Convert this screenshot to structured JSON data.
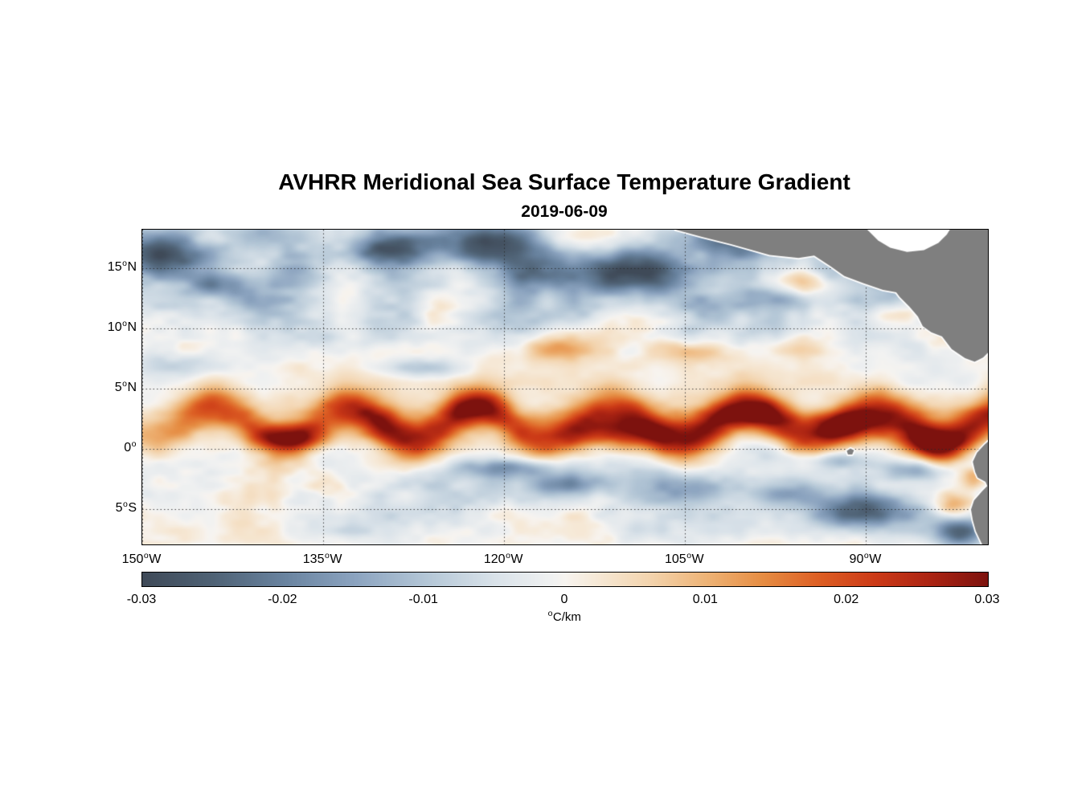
{
  "chart_data": {
    "type": "heatmap",
    "title": "AVHRR Meridional Sea Surface Temperature Gradient",
    "subtitle": "2019-06-09",
    "degree_symbol": "o",
    "lon_range": [
      -150,
      -79.9
    ],
    "lat_range": [
      -7.9,
      18.2
    ],
    "grid": true,
    "grid_style": "dotted",
    "lat_ticks": [
      {
        "value": 15,
        "num": "15",
        "hemi": "N"
      },
      {
        "value": 10,
        "num": "10",
        "hemi": "N"
      },
      {
        "value": 5,
        "num": "5",
        "hemi": "N"
      },
      {
        "value": 0,
        "num": "0",
        "hemi": ""
      },
      {
        "value": -5,
        "num": "5",
        "hemi": "S"
      }
    ],
    "lon_ticks": [
      {
        "value": -150,
        "num": "150",
        "hemi": "W"
      },
      {
        "value": -135,
        "num": "135",
        "hemi": "W"
      },
      {
        "value": -120,
        "num": "120",
        "hemi": "W"
      },
      {
        "value": -105,
        "num": "105",
        "hemi": "W"
      },
      {
        "value": -90,
        "num": "90",
        "hemi": "W"
      }
    ],
    "colorbar": {
      "min": -0.03,
      "max": 0.03,
      "ticks": [
        {
          "v": -0.03,
          "label": "-0.03"
        },
        {
          "v": -0.02,
          "label": "-0.02"
        },
        {
          "v": -0.01,
          "label": "-0.01"
        },
        {
          "v": 0,
          "label": "0"
        },
        {
          "v": 0.01,
          "label": "0.01"
        },
        {
          "v": 0.02,
          "label": "0.02"
        },
        {
          "v": 0.03,
          "label": "0.03"
        }
      ],
      "units_text": "C/km"
    },
    "colormap": [
      {
        "v": -0.03,
        "c": "#3f4a58"
      },
      {
        "v": -0.025,
        "c": "#4f6275"
      },
      {
        "v": -0.02,
        "c": "#69839f"
      },
      {
        "v": -0.015,
        "c": "#8ba3bf"
      },
      {
        "v": -0.01,
        "c": "#b3c6d6"
      },
      {
        "v": -0.005,
        "c": "#d9e2e9"
      },
      {
        "v": -0.001,
        "c": "#f0f1f1"
      },
      {
        "v": 0.0,
        "c": "#f7f4f0"
      },
      {
        "v": 0.002,
        "c": "#f6ead9"
      },
      {
        "v": 0.006,
        "c": "#f3d4ae"
      },
      {
        "v": 0.01,
        "c": "#eeb477"
      },
      {
        "v": 0.014,
        "c": "#e68d43"
      },
      {
        "v": 0.018,
        "c": "#dd5f24"
      },
      {
        "v": 0.022,
        "c": "#cc3a17"
      },
      {
        "v": 0.026,
        "c": "#ab2413"
      },
      {
        "v": 0.03,
        "c": "#7d120e"
      }
    ],
    "land": {
      "fill": "#7f7f7f",
      "coast": "#ffffff",
      "polygons": {
        "central_america": [
          [
            -105.8,
            18.2
          ],
          [
            -103.6,
            17.6
          ],
          [
            -101.2,
            17.0
          ],
          [
            -98.0,
            16.1
          ],
          [
            -95.6,
            15.85
          ],
          [
            -94.3,
            16.05
          ],
          [
            -93.0,
            15.2
          ],
          [
            -91.8,
            14.35
          ],
          [
            -90.2,
            13.75
          ],
          [
            -88.6,
            13.2
          ],
          [
            -87.5,
            13.0
          ],
          [
            -87.2,
            12.6
          ],
          [
            -86.4,
            11.8
          ],
          [
            -85.7,
            11.0
          ],
          [
            -85.3,
            10.2
          ],
          [
            -84.6,
            9.7
          ],
          [
            -83.7,
            9.35
          ],
          [
            -82.9,
            8.3
          ],
          [
            -81.8,
            7.55
          ],
          [
            -81.0,
            7.25
          ],
          [
            -80.3,
            7.6
          ],
          [
            -79.9,
            8.0
          ],
          [
            -79.6,
            8.3
          ],
          [
            -79.6,
            18.2
          ]
        ],
        "caribbean_water": [
          [
            -90.0,
            18.3
          ],
          [
            -89.0,
            17.3
          ],
          [
            -88.0,
            16.7
          ],
          [
            -86.6,
            16.35
          ],
          [
            -85.2,
            16.5
          ],
          [
            -84.0,
            17.1
          ],
          [
            -83.3,
            17.8
          ],
          [
            -83.0,
            18.3
          ]
        ],
        "south_america": [
          [
            -79.6,
            0.9
          ],
          [
            -80.2,
            0.35
          ],
          [
            -80.8,
            -0.3
          ],
          [
            -81.15,
            -1.05
          ],
          [
            -80.95,
            -1.9
          ],
          [
            -80.75,
            -2.35
          ],
          [
            -80.1,
            -2.7
          ],
          [
            -79.95,
            -3.05
          ],
          [
            -80.35,
            -3.45
          ],
          [
            -81.05,
            -4.25
          ],
          [
            -81.3,
            -5.0
          ],
          [
            -81.15,
            -5.9
          ],
          [
            -80.9,
            -6.8
          ],
          [
            -80.35,
            -7.95
          ],
          [
            -79.6,
            -7.95
          ]
        ],
        "galapagos": [
          [
            -91.6,
            -0.15
          ],
          [
            -91.3,
            0.05
          ],
          [
            -91.0,
            -0.1
          ],
          [
            -91.15,
            -0.45
          ],
          [
            -91.5,
            -0.45
          ]
        ]
      }
    },
    "field_model": {
      "seed": 7,
      "zonal_stretch": 0.58,
      "noise_octaves": [
        {
          "scale": 3.0,
          "amp": 1.0
        },
        {
          "scale": 1.35,
          "amp": 0.55
        },
        {
          "scale": 0.62,
          "amp": 0.28
        }
      ],
      "lat_profile": {
        "lat": [
          -8,
          -6,
          -4,
          -2,
          -0.5,
          1,
          3,
          5,
          7,
          9,
          12,
          15,
          18.2
        ],
        "bias": [
          -0.001,
          -0.002,
          -0.003,
          -0.003,
          -0.001,
          0.002,
          0.003,
          0.001,
          0.0,
          -0.003,
          -0.005,
          -0.005,
          -0.004
        ],
        "amp": [
          0.008,
          0.009,
          0.01,
          0.009,
          0.008,
          0.007,
          0.007,
          0.005,
          0.006,
          0.01,
          0.012,
          0.012,
          0.011
        ]
      },
      "front": {
        "amplitude": 0.023,
        "base_lat": 2.1,
        "meander_amp": 1.25,
        "wavelength_deg": 11,
        "phase": -1.86,
        "width_deg": 1.3,
        "west_fade_start": -150,
        "west_fade_len": 15,
        "west_min": 0.45,
        "mod_scale": 5,
        "mod_amp": 0.35
      },
      "blobs": [
        [
          -148.5,
          16.2,
          2.3,
          1.2,
          -0.02
        ],
        [
          -144.0,
          13.6,
          2.4,
          0.9,
          -0.011
        ],
        [
          -137.0,
          14.9,
          2.0,
          0.9,
          -0.012
        ],
        [
          -129.8,
          16.7,
          2.4,
          0.9,
          -0.017
        ],
        [
          -121.0,
          16.5,
          3.4,
          1.4,
          -0.023
        ],
        [
          -117.0,
          14.5,
          2.0,
          0.8,
          -0.013
        ],
        [
          -109.6,
          14.6,
          3.2,
          1.2,
          -0.023
        ],
        [
          -101.3,
          17.4,
          2.8,
          1.2,
          -0.021
        ],
        [
          -97.0,
          12.5,
          1.8,
          0.7,
          -0.009
        ],
        [
          -126.5,
          6.7,
          2.4,
          0.6,
          -0.01
        ],
        [
          -146.0,
          6.9,
          2.8,
          0.7,
          -0.009
        ],
        [
          -119.8,
          -1.6,
          2.6,
          0.55,
          -0.015
        ],
        [
          -115.8,
          -2.9,
          2.2,
          0.6,
          -0.014
        ],
        [
          -104.3,
          -3.1,
          2.8,
          0.8,
          -0.011
        ],
        [
          -96.8,
          -3.7,
          2.4,
          0.7,
          -0.012
        ],
        [
          -90.6,
          -5.1,
          2.6,
          1.0,
          -0.019
        ],
        [
          -86.0,
          -1.8,
          1.8,
          0.55,
          -0.012
        ],
        [
          -82.4,
          -6.9,
          1.5,
          0.9,
          -0.022
        ],
        [
          -93.0,
          -0.9,
          2.0,
          0.5,
          -0.009
        ],
        [
          -137.6,
          0.9,
          2.0,
          0.7,
          0.016
        ],
        [
          -122.6,
          3.7,
          1.6,
          0.8,
          0.014
        ],
        [
          -116.2,
          8.3,
          2.4,
          0.7,
          0.013
        ],
        [
          -104.6,
          8.1,
          2.2,
          0.7,
          0.009
        ],
        [
          -96.3,
          8.6,
          2.4,
          0.7,
          0.009
        ],
        [
          -95.4,
          13.8,
          1.5,
          0.8,
          0.015
        ],
        [
          -87.6,
          11.1,
          1.5,
          0.7,
          0.011
        ],
        [
          -86.3,
          17.4,
          2.4,
          0.8,
          0.015
        ],
        [
          -110.6,
          1.3,
          2.6,
          0.9,
          0.018
        ],
        [
          -91.6,
          1.9,
          2.4,
          0.9,
          0.02
        ],
        [
          -85.0,
          0.4,
          2.2,
          0.8,
          0.018
        ],
        [
          -82.6,
          -4.6,
          1.1,
          0.8,
          0.016
        ],
        [
          -81.1,
          -2.4,
          0.8,
          0.6,
          0.014
        ],
        [
          -99.5,
          2.9,
          2.0,
          0.8,
          0.012
        ]
      ]
    }
  }
}
